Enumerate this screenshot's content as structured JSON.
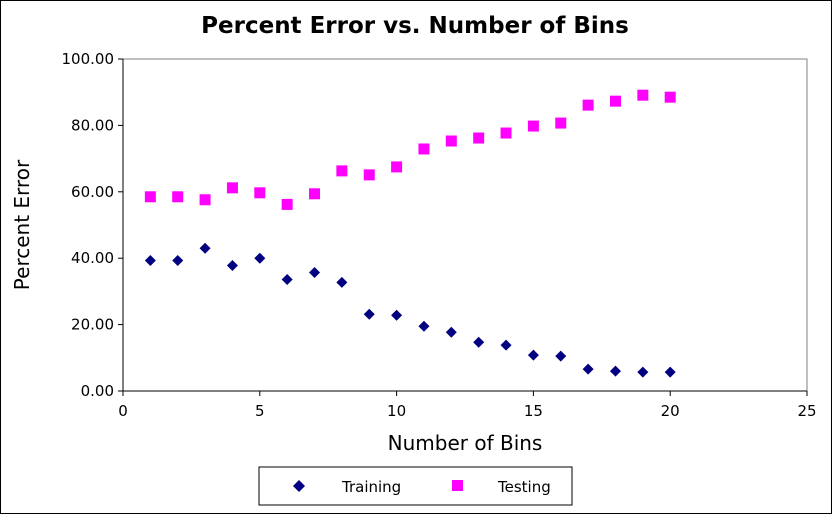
{
  "chart_data": {
    "type": "scatter",
    "title": "Percent Error vs. Number of Bins",
    "xlabel": "Number of Bins",
    "ylabel": "Percent Error",
    "xlim": [
      0,
      25
    ],
    "ylim": [
      0,
      100
    ],
    "xticks": [
      "0",
      "5",
      "10",
      "15",
      "20",
      "25"
    ],
    "yticks": [
      "0.00",
      "20.00",
      "40.00",
      "60.00",
      "80.00",
      "100.00"
    ],
    "grid": false,
    "legend_position": "bottom",
    "series": [
      {
        "name": "Training",
        "marker": "diamond",
        "color": "#000080",
        "points": [
          [
            1,
            39.3
          ],
          [
            2,
            39.3
          ],
          [
            3,
            43.0
          ],
          [
            4,
            37.8
          ],
          [
            5,
            40.0
          ],
          [
            6,
            33.6
          ],
          [
            7,
            35.7
          ],
          [
            8,
            32.7
          ],
          [
            9,
            23.1
          ],
          [
            10,
            22.8
          ],
          [
            11,
            19.5
          ],
          [
            12,
            17.7
          ],
          [
            13,
            14.7
          ],
          [
            14,
            13.8
          ],
          [
            15,
            10.8
          ],
          [
            16,
            10.5
          ],
          [
            17,
            6.6
          ],
          [
            18,
            6.0
          ],
          [
            19,
            5.7
          ],
          [
            20,
            5.7
          ]
        ]
      },
      {
        "name": "Testing",
        "marker": "square",
        "color": "#FF00FF",
        "points": [
          [
            1,
            58.5
          ],
          [
            2,
            58.5
          ],
          [
            3,
            57.6
          ],
          [
            4,
            61.2
          ],
          [
            5,
            59.7
          ],
          [
            6,
            56.2
          ],
          [
            7,
            59.4
          ],
          [
            8,
            66.3
          ],
          [
            9,
            65.1
          ],
          [
            10,
            67.5
          ],
          [
            11,
            72.9
          ],
          [
            12,
            75.3
          ],
          [
            13,
            76.2
          ],
          [
            14,
            77.7
          ],
          [
            15,
            79.8
          ],
          [
            16,
            80.7
          ],
          [
            17,
            86.1
          ],
          [
            18,
            87.3
          ],
          [
            19,
            89.1
          ],
          [
            20,
            88.5
          ]
        ]
      }
    ]
  }
}
